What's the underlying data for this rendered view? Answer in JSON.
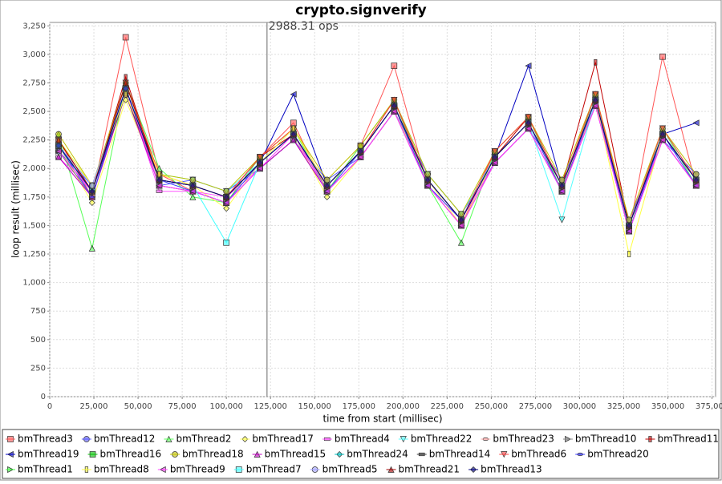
{
  "chart_data": {
    "type": "line",
    "title": "crypto.signverify",
    "annotation": "2988.31 ops",
    "marker_x": 123000,
    "x_label": "time from start (millisec)",
    "y_label": "loop result (millisec)",
    "xlim": [
      0,
      377000
    ],
    "ylim": [
      0,
      3280
    ],
    "xticks": [
      0,
      {
        "value": 25000,
        "label": "25,000"
      },
      {
        "value": 50000,
        "label": "50,000"
      },
      {
        "value": 75000,
        "label": "75,000"
      },
      {
        "value": 100000,
        "label": "100,000"
      },
      {
        "value": 125000,
        "label": "125,000"
      },
      {
        "value": 150000,
        "label": "150,000"
      },
      {
        "value": 175000,
        "label": "175,000"
      },
      {
        "value": 200000,
        "label": "200,000"
      },
      {
        "value": 225000,
        "label": "225,000"
      },
      {
        "value": 250000,
        "label": "250,000"
      },
      {
        "value": 275000,
        "label": "275,000"
      },
      {
        "value": 300000,
        "label": "300,000"
      },
      {
        "value": 325000,
        "label": "325,000"
      },
      {
        "value": 350000,
        "label": "350,000"
      },
      {
        "value": 375000,
        "label": "375,000"
      }
    ],
    "yticks": [
      0,
      250,
      500,
      750,
      {
        "value": 1000,
        "label": "1,000"
      },
      {
        "value": 1250,
        "label": "1,250"
      },
      {
        "value": 1500,
        "label": "1,500"
      },
      {
        "value": 1750,
        "label": "1,750"
      },
      {
        "value": 2000,
        "label": "2,000"
      },
      {
        "value": 2250,
        "label": "2,250"
      },
      {
        "value": 2500,
        "label": "2,500"
      },
      {
        "value": 2750,
        "label": "2,750"
      },
      {
        "value": 3000,
        "label": "3,000"
      },
      {
        "value": 3250,
        "label": "3,250"
      }
    ],
    "grid": true,
    "legend": "bottom",
    "x": [
      5000,
      24000,
      43000,
      62000,
      81000,
      100000,
      119000,
      138000,
      157000,
      176000,
      195000,
      214000,
      233000,
      252000,
      271000,
      290000,
      309000,
      328000,
      347000,
      366000
    ],
    "series": [
      {
        "name": "bmThread3",
        "color": "#ff5555",
        "values": [
          2250,
          1750,
          3150,
          1950,
          1800,
          1700,
          2100,
          2400,
          1800,
          2200,
          2900,
          1850,
          1500,
          2150,
          2450,
          1800,
          2650,
          1450,
          2980,
          1850
        ]
      },
      {
        "name": "bmThread12",
        "color": "#5555ff",
        "values": [
          2150,
          1850,
          2650,
          1850,
          1900,
          1800,
          2000,
          2250,
          1900,
          2100,
          2500,
          1950,
          1600,
          2050,
          2350,
          1900,
          2550,
          1550,
          2250,
          1950
        ]
      },
      {
        "name": "bmThread2",
        "color": "#55ff55",
        "values": [
          2300,
          1300,
          2750,
          2000,
          1750,
          1700,
          2100,
          2350,
          1800,
          2200,
          2600,
          1850,
          1350,
          2150,
          2450,
          1800,
          2650,
          1450,
          2350,
          1850
        ]
      },
      {
        "name": "bmThread17",
        "color": "#ffff55",
        "values": [
          2200,
          1700,
          2600,
          1900,
          1850,
          1650,
          2050,
          2300,
          1750,
          2100,
          2500,
          1900,
          1500,
          2100,
          2400,
          1850,
          2550,
          1500,
          2300,
          1900
        ]
      },
      {
        "name": "bmThread4",
        "color": "#ff55ff",
        "values": [
          2100,
          1800,
          2700,
          1800,
          1800,
          1750,
          2000,
          2250,
          1850,
          2150,
          2550,
          1850,
          1550,
          2050,
          2350,
          1800,
          2600,
          1500,
          2250,
          1850
        ]
      },
      {
        "name": "bmThread22",
        "color": "#55ffff",
        "values": [
          2250,
          1850,
          2700,
          1950,
          1900,
          1800,
          2050,
          2350,
          1850,
          2150,
          2600,
          1950,
          1600,
          2100,
          2400,
          1550,
          2600,
          1500,
          2350,
          1900
        ]
      },
      {
        "name": "bmThread23",
        "color": "#ffafaf",
        "values": [
          2200,
          1800,
          2650,
          1900,
          1850,
          1750,
          2050,
          2300,
          1850,
          2150,
          2550,
          1900,
          1550,
          2100,
          2400,
          1850,
          2600,
          1500,
          2300,
          1900
        ]
      },
      {
        "name": "bmThread10",
        "color": "#808080",
        "values": [
          2150,
          1750,
          2700,
          1850,
          1800,
          1700,
          2000,
          2250,
          1800,
          2100,
          2500,
          1850,
          1500,
          2050,
          2350,
          1800,
          2550,
          1450,
          2250,
          1850
        ]
      },
      {
        "name": "bmThread11",
        "color": "#c00000",
        "values": [
          2250,
          1800,
          2800,
          1900,
          1850,
          1750,
          2100,
          2300,
          1850,
          2150,
          2600,
          1900,
          1550,
          2100,
          2450,
          1850,
          2930,
          1500,
          2300,
          1900
        ]
      },
      {
        "name": "bmThread19",
        "color": "#0000c0",
        "values": [
          2200,
          1800,
          2700,
          1900,
          1850,
          1750,
          2050,
          2650,
          1850,
          2150,
          2550,
          1900,
          1550,
          2100,
          2900,
          1850,
          2600,
          1500,
          2300,
          2400
        ]
      },
      {
        "name": "bmThread16",
        "color": "#00c000",
        "values": [
          2200,
          1800,
          2700,
          1900,
          1850,
          1750,
          2050,
          2300,
          1850,
          2150,
          2550,
          1900,
          1550,
          2100,
          2400,
          1850,
          2600,
          1500,
          2300,
          1900
        ]
      },
      {
        "name": "bmThread18",
        "color": "#c0c000",
        "values": [
          2300,
          1850,
          2750,
          1950,
          1900,
          1800,
          2100,
          2350,
          1900,
          2200,
          2600,
          1950,
          1600,
          2150,
          2450,
          1900,
          2650,
          1550,
          2350,
          1950
        ]
      },
      {
        "name": "bmThread15",
        "color": "#c000c0",
        "values": [
          2100,
          1750,
          2650,
          1850,
          1800,
          1700,
          2000,
          2250,
          1800,
          2100,
          2500,
          1850,
          1500,
          2050,
          2350,
          1800,
          2550,
          1450,
          2250,
          1850
        ]
      },
      {
        "name": "bmThread24",
        "color": "#00c0c0",
        "values": [
          2200,
          1850,
          2700,
          1900,
          1850,
          1750,
          2050,
          2300,
          1850,
          2150,
          2550,
          1900,
          1550,
          2100,
          2400,
          1850,
          2600,
          1500,
          2300,
          1900
        ]
      },
      {
        "name": "bmThread14",
        "color": "#404040",
        "values": [
          2150,
          1800,
          2650,
          1900,
          1850,
          1750,
          2050,
          2300,
          1850,
          2150,
          2550,
          1900,
          1550,
          2100,
          2400,
          1850,
          2600,
          1500,
          2300,
          1900
        ]
      },
      {
        "name": "bmThread6",
        "color": "#ff4040",
        "values": [
          2250,
          1800,
          2750,
          1950,
          1850,
          1750,
          2100,
          2350,
          1850,
          2150,
          2600,
          1900,
          1550,
          2150,
          2450,
          1850,
          2650,
          1500,
          2350,
          1900
        ]
      },
      {
        "name": "bmThread20",
        "color": "#4040ff",
        "values": [
          2200,
          1750,
          2700,
          1900,
          1800,
          1700,
          2050,
          2300,
          1800,
          2150,
          2550,
          1850,
          1550,
          2100,
          2400,
          1800,
          2600,
          1450,
          2300,
          1850
        ]
      },
      {
        "name": "bmThread1",
        "color": "#40ff40",
        "values": [
          2200,
          1800,
          2700,
          1900,
          1850,
          1750,
          2050,
          2300,
          1850,
          2150,
          2550,
          1900,
          1550,
          2100,
          2400,
          1850,
          2600,
          1500,
          2300,
          1900
        ]
      },
      {
        "name": "bmThread8",
        "color": "#ffff40",
        "values": [
          2250,
          1850,
          2650,
          1950,
          1850,
          1750,
          2050,
          2350,
          1850,
          2150,
          2550,
          1900,
          1550,
          2100,
          2400,
          1850,
          2600,
          1250,
          2300,
          1900
        ]
      },
      {
        "name": "bmThread9",
        "color": "#ff40ff",
        "values": [
          2150,
          1800,
          2700,
          1850,
          1800,
          1700,
          2000,
          2300,
          1800,
          2100,
          2500,
          1850,
          1500,
          2050,
          2350,
          1800,
          2550,
          1450,
          2250,
          1850
        ]
      },
      {
        "name": "bmThread7",
        "color": "#40ffff",
        "values": [
          2200,
          1800,
          2700,
          1900,
          1850,
          1350,
          2050,
          2300,
          1850,
          2150,
          2550,
          1900,
          1550,
          2100,
          2400,
          1850,
          2600,
          1500,
          2300,
          1900
        ]
      },
      {
        "name": "bmThread5",
        "color": "#a0a0ff",
        "values": [
          2200,
          1850,
          2700,
          1900,
          1850,
          1750,
          2050,
          2300,
          1850,
          2150,
          2550,
          1900,
          1550,
          2100,
          2400,
          1850,
          2600,
          1500,
          2300,
          1900
        ]
      },
      {
        "name": "bmThread21",
        "color": "#a00000",
        "values": [
          2250,
          1800,
          2750,
          1900,
          1850,
          1750,
          2050,
          2300,
          1850,
          2150,
          2550,
          1900,
          1550,
          2100,
          2400,
          1850,
          2600,
          1500,
          2300,
          1900
        ]
      },
      {
        "name": "bmThread13",
        "color": "#000080",
        "values": [
          2200,
          1800,
          2700,
          1900,
          1850,
          1750,
          2050,
          2300,
          1850,
          2150,
          2550,
          1900,
          1550,
          2100,
          2400,
          1850,
          2600,
          1500,
          2300,
          1900
        ]
      }
    ]
  }
}
